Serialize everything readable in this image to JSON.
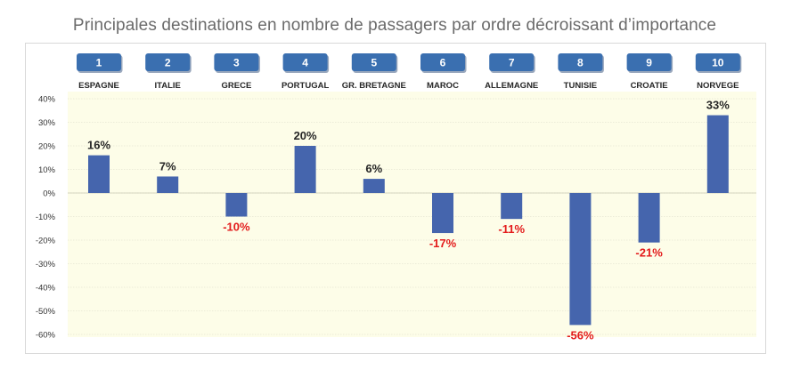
{
  "page": {
    "title": "Principales destinations en nombre de passagers par ordre décroissant d’importance"
  },
  "colors": {
    "bar": "#4565ad",
    "plot_background": "#fdfde8",
    "badge": "#3a6fb0",
    "negative_label": "#e31b1b",
    "positive_label": "#262626"
  },
  "chart_data": {
    "type": "bar",
    "title": "Principales destinations en nombre de passagers par ordre décroissant d’importance",
    "ranks": [
      "1",
      "2",
      "3",
      "4",
      "5",
      "6",
      "7",
      "8",
      "9",
      "10"
    ],
    "categories": [
      "ESPAGNE",
      "ITALIE",
      "GRECE",
      "PORTUGAL",
      "GR. BRETAGNE",
      "MAROC",
      "ALLEMAGNE",
      "TUNISIE",
      "CROATIE",
      "NORVEGE"
    ],
    "values": [
      16,
      7,
      -10,
      20,
      6,
      -17,
      -11,
      -56,
      -21,
      33
    ],
    "value_labels": [
      "16%",
      "7%",
      "-10%",
      "20%",
      "6%",
      "-17%",
      "-11%",
      "-56%",
      "-21%",
      "33%"
    ],
    "yticks": [
      40,
      30,
      20,
      10,
      0,
      -10,
      -20,
      -30,
      -40,
      -50,
      -60
    ],
    "ytick_labels": [
      "40%",
      "30%",
      "20%",
      "10%",
      "0%",
      "-10%",
      "-20%",
      "-30%",
      "-40%",
      "-50%",
      "-60%"
    ],
    "ylim": [
      -60,
      40
    ],
    "xlabel": "",
    "ylabel": "",
    "grid": true
  }
}
